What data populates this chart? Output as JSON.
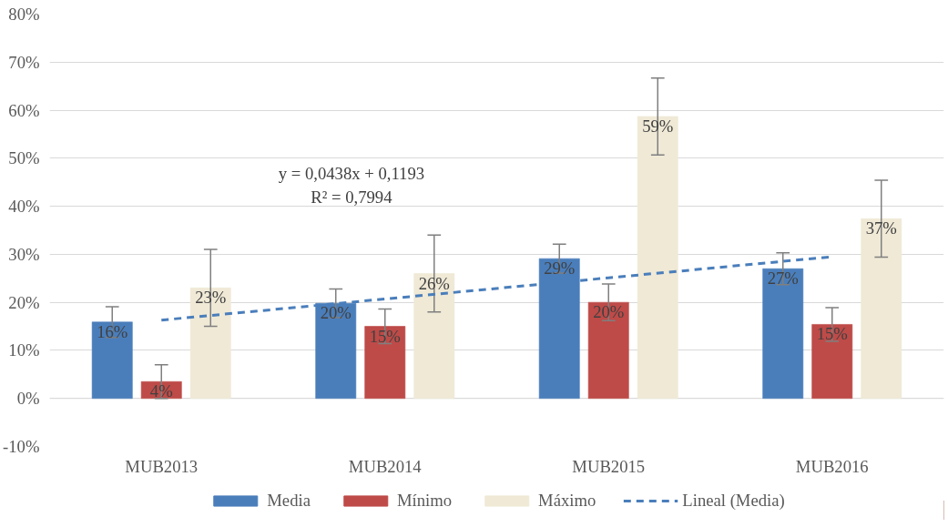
{
  "chart_data": {
    "type": "bar",
    "categories": [
      "MUB2013",
      "MUB2014",
      "MUB2015",
      "MUB2016"
    ],
    "series": [
      {
        "name": "Media",
        "color": "#4a7ebb",
        "values": [
          15.9,
          19.8,
          29.1,
          27.0
        ],
        "errors": [
          3.2,
          3.0,
          3.0,
          3.3
        ],
        "value_labels": [
          "16%",
          "20%",
          "29%",
          "27%"
        ]
      },
      {
        "name": "Mínimo",
        "color": "#be4b48",
        "values": [
          3.5,
          15.0,
          20.0,
          15.4
        ],
        "errors": [
          3.5,
          3.6,
          3.8,
          3.5
        ],
        "value_labels": [
          "4%",
          "15%",
          "20%",
          "15%"
        ]
      },
      {
        "name": "Máximo",
        "color": "#efe9d6",
        "values": [
          23.0,
          26.0,
          58.7,
          37.4
        ],
        "errors": [
          8.0,
          8.0,
          8.0,
          8.0
        ],
        "value_labels": [
          "23%",
          "26%",
          "59%",
          "37%"
        ]
      },
      {
        "name": "Lineal (Media)",
        "type": "line",
        "line_style": "dashed",
        "color": "#4a7ebb",
        "x": [
          "MUB2013",
          "MUB2014",
          "MUB2015",
          "MUB2016"
        ],
        "values": [
          16.3,
          20.7,
          25.1,
          29.5
        ]
      }
    ],
    "ylim": [
      -10,
      80
    ],
    "yticks": [
      {
        "value": -10,
        "label": "-10%"
      },
      {
        "value": 0,
        "label": "0%"
      },
      {
        "value": 10,
        "label": "10%"
      },
      {
        "value": 20,
        "label": "20%"
      },
      {
        "value": 30,
        "label": "30%"
      },
      {
        "value": 40,
        "label": "40%"
      },
      {
        "value": 50,
        "label": "50%"
      },
      {
        "value": 60,
        "label": "60%"
      },
      {
        "value": 70,
        "label": "70%"
      },
      {
        "value": 80,
        "label": "80%"
      }
    ],
    "grid": "y",
    "legend": "bottom",
    "annotations": [
      "y = 0,0438x + 0,1193",
      "R² = 0,7994"
    ]
  }
}
